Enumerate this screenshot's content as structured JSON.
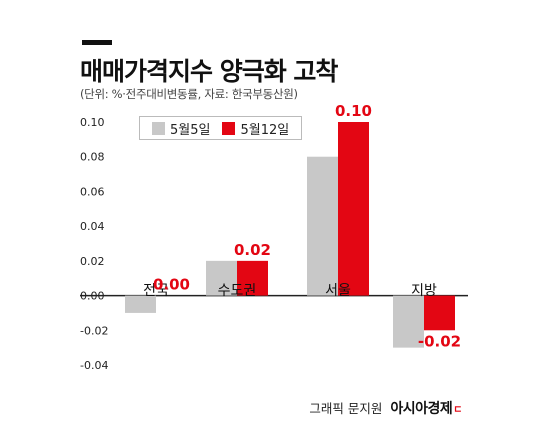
{
  "header": {
    "title": "매매가격지수 양극화 고착",
    "subtitle": "(단위: %·전주대비변동률, 자료: 한국부동산원)"
  },
  "credit": {
    "text": "그래픽 문지원",
    "brand": "아시아경제"
  },
  "colors": {
    "series1": "#c8c8c8",
    "series2": "#e30613",
    "axis": "#222222",
    "text": "#222222"
  },
  "chart_data": {
    "type": "bar",
    "categories": [
      "전국",
      "수도권",
      "서울",
      "지방"
    ],
    "series": [
      {
        "name": "5월5일",
        "values": [
          -0.01,
          0.02,
          0.08,
          -0.03
        ]
      },
      {
        "name": "5월12일",
        "values": [
          0.0,
          0.02,
          0.1,
          -0.02
        ]
      }
    ],
    "data_labels": [
      "0.00",
      "0.02",
      "0.10",
      "-0.02"
    ],
    "y_ticks": [
      "0.10",
      "0.08",
      "0.06",
      "0.04",
      "0.02",
      "0.00",
      "-0.02",
      "-0.04"
    ],
    "y_tick_values": [
      0.1,
      0.08,
      0.06,
      0.04,
      0.02,
      0.0,
      -0.02,
      -0.04
    ],
    "ylim": [
      -0.04,
      0.1
    ],
    "legend": "top-left",
    "grid": false
  }
}
